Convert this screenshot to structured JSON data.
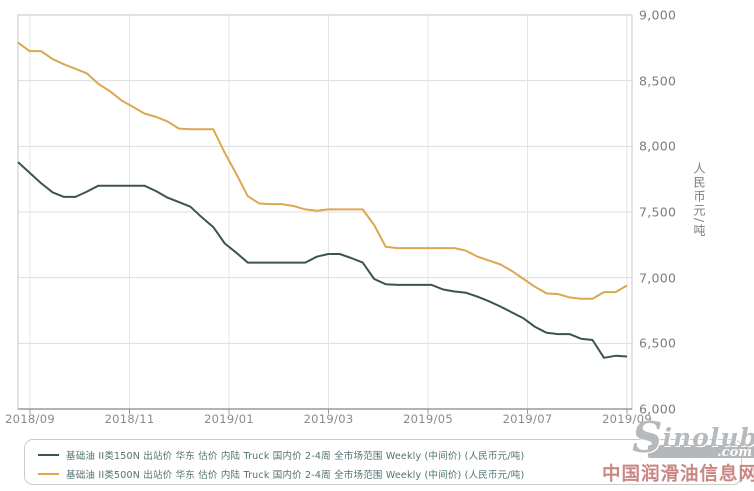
{
  "axes": {
    "y_ticks": [
      "9,000",
      "8,500",
      "8,000",
      "7,500",
      "7,000",
      "6,500",
      "6,000"
    ],
    "x_ticks": [
      "2018/09",
      "2018/11",
      "2019/01",
      "2019/03",
      "2019/05",
      "2019/07",
      "2019/09"
    ],
    "y_title": "人民币元/吨"
  },
  "legend": {
    "items": [
      {
        "label": "基础油 II类150N 出站价 华东 估价 内陆 Truck 国内价 2-4周 全市场范围 Weekly (中间价) (人民币元/吨)",
        "color": "#3c544f"
      },
      {
        "label": "基础油 II类500N 出站价 华东 估价 内陆 Truck 国内价 2-4周 全市场范围 Weekly (中间价) (人民币元/吨)",
        "color": "#dca751"
      }
    ]
  },
  "watermark": {
    "logo_s": "S",
    "logo_rest": "inolub",
    "logo_domain": ".com",
    "site_name": "中国润滑油信息网"
  },
  "chart_data": {
    "type": "line",
    "title": "",
    "xlabel": "",
    "ylabel": "人民币元/吨",
    "ylim": [
      6000,
      9000
    ],
    "y_tick_step": 500,
    "grid": true,
    "legend_position": "bottom",
    "x_tick_labels": [
      "2018/09",
      "2018/11",
      "2019/01",
      "2019/03",
      "2019/05",
      "2019/07",
      "2019/09"
    ],
    "x_unit": "weekly observations, 2018/09 through 2019/09",
    "series": [
      {
        "name": "基础油 II类150N 出站价 华东 估价 内陆 Truck 国内价 2-4周 全市场范围 Weekly (中间价) (人民币元/吨)",
        "color": "#3c544f",
        "values": [
          7880,
          7800,
          7720,
          7650,
          7615,
          7615,
          7655,
          7700,
          7700,
          7700,
          7700,
          7700,
          7660,
          7610,
          7575,
          7540,
          7460,
          7385,
          7260,
          7190,
          7115,
          7115,
          7115,
          7115,
          7115,
          7115,
          7160,
          7180,
          7180,
          7150,
          7115,
          6990,
          6950,
          6945,
          6945,
          6945,
          6945,
          6910,
          6895,
          6885,
          6855,
          6820,
          6780,
          6735,
          6690,
          6625,
          6580,
          6570,
          6570,
          6535,
          6525,
          6390,
          6405,
          6400
        ]
      },
      {
        "name": "基础油 II类500N 出站价 华东 估价 内陆 Truck 国内价 2-4周 全市场范围 Weekly (中间价) (人民币元/吨)",
        "color": "#dca751",
        "values": [
          8790,
          8725,
          8725,
          8665,
          8625,
          8590,
          8555,
          8475,
          8420,
          8350,
          8300,
          8250,
          8225,
          8190,
          8135,
          8130,
          8130,
          8130,
          7950,
          7790,
          7620,
          7565,
          7560,
          7560,
          7545,
          7520,
          7510,
          7520,
          7520,
          7520,
          7520,
          7400,
          7235,
          7225,
          7225,
          7225,
          7225,
          7225,
          7225,
          7205,
          7160,
          7130,
          7100,
          7050,
          6990,
          6930,
          6880,
          6875,
          6850,
          6840,
          6840,
          6890,
          6890,
          6940
        ]
      }
    ]
  }
}
